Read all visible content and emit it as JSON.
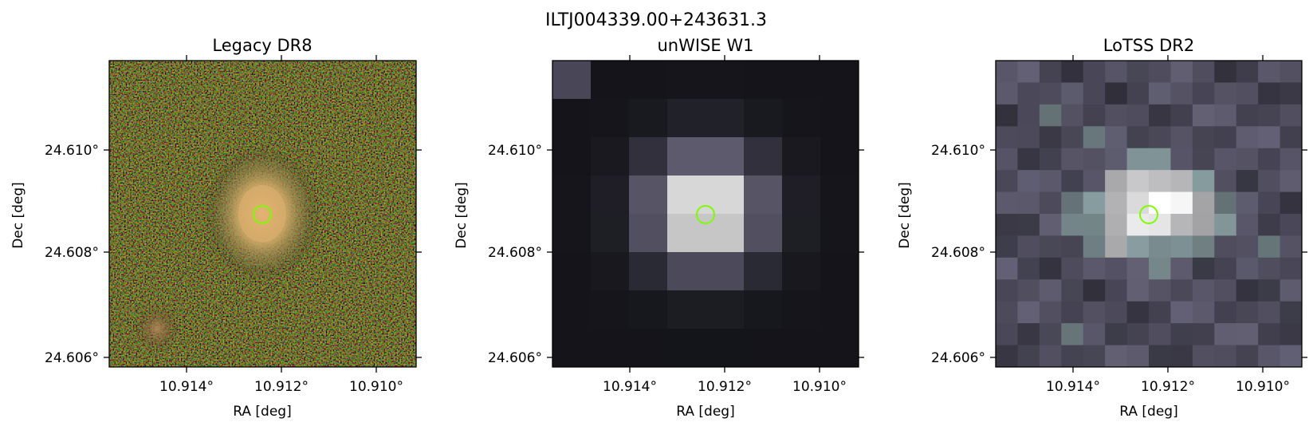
{
  "figure_title": "ILTJ004339.00+243631.3",
  "panels": [
    {
      "title": "Legacy DR8",
      "xlabel": "RA [deg]",
      "ylabel": "Dec [deg]",
      "xticks": [
        "10.914°",
        "10.912°",
        "10.910°"
      ],
      "yticks": [
        "24.610°",
        "24.608°",
        "24.606°"
      ]
    },
    {
      "title": "unWISE W1",
      "xlabel": "RA [deg]",
      "ylabel": "Dec [deg]",
      "xticks": [
        "10.914°",
        "10.912°",
        "10.910°"
      ],
      "yticks": [
        "24.610°",
        "24.608°",
        "24.606°"
      ]
    },
    {
      "title": "LoTSS DR2",
      "xlabel": "RA [deg]",
      "ylabel": "Dec [deg]",
      "xticks": [
        "10.914°",
        "10.912°",
        "10.910°"
      ],
      "yticks": [
        "24.610°",
        "24.608°",
        "24.606°"
      ]
    }
  ],
  "marker_color": "#7cfc00"
}
